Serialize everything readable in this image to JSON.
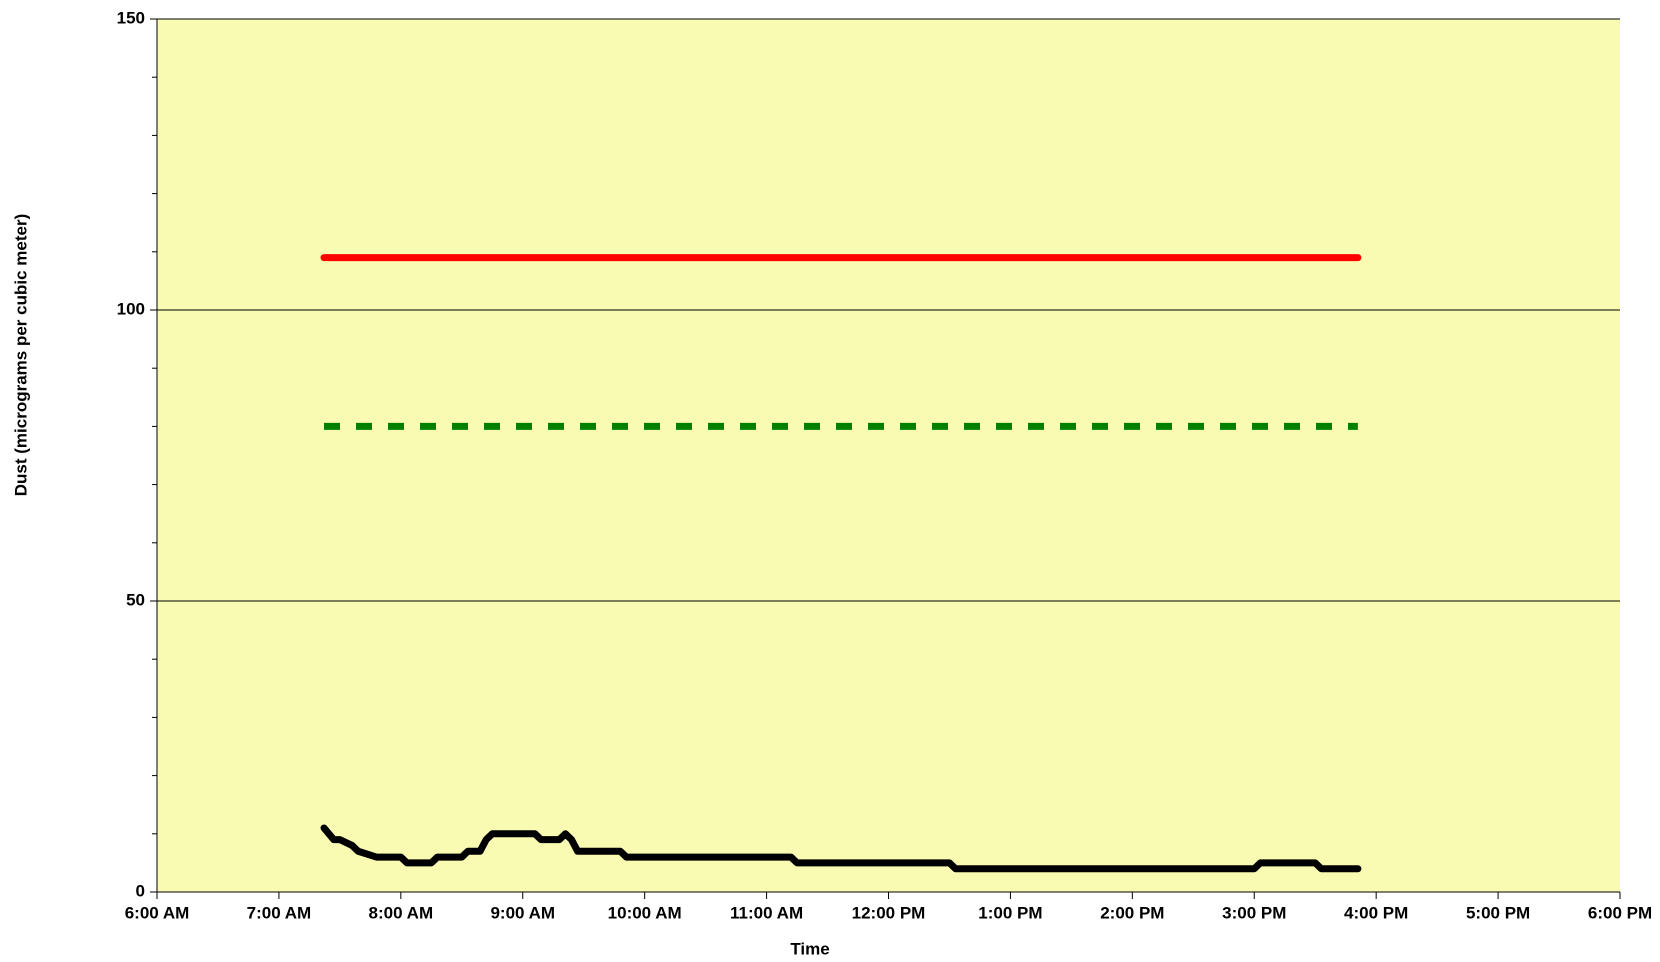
{
  "chart_data": {
    "type": "line",
    "xlabel": "Time",
    "ylabel": "Dust (micrograms per cubic meter)",
    "plot_background": "#f8fbb1",
    "xlim": [
      6,
      18
    ],
    "xticks": [
      {
        "value": 6,
        "label": "6:00 AM"
      },
      {
        "value": 7,
        "label": "7:00 AM"
      },
      {
        "value": 8,
        "label": "8:00 AM"
      },
      {
        "value": 9,
        "label": "9:00 AM"
      },
      {
        "value": 10,
        "label": "10:00 AM"
      },
      {
        "value": 11,
        "label": "11:00 AM"
      },
      {
        "value": 12,
        "label": "12:00 PM"
      },
      {
        "value": 13,
        "label": "1:00 PM"
      },
      {
        "value": 14,
        "label": "2:00 PM"
      },
      {
        "value": 15,
        "label": "3:00 PM"
      },
      {
        "value": 16,
        "label": "4:00 PM"
      },
      {
        "value": 17,
        "label": "5:00 PM"
      },
      {
        "value": 18,
        "label": "6:00 PM"
      }
    ],
    "ylim": [
      0,
      150
    ],
    "yticks": [
      0,
      50,
      100,
      150
    ],
    "y_minor_ticks": [
      10,
      20,
      30,
      40,
      60,
      70,
      80,
      90,
      110,
      120,
      130,
      140
    ],
    "grid": true,
    "series": [
      {
        "color": "#ff0000",
        "linestyle": "solid",
        "x": [
          7.37,
          15.85
        ],
        "values": [
          109,
          109
        ]
      },
      {
        "color": "#008000",
        "linestyle": "dashed",
        "x": [
          7.37,
          15.85
        ],
        "values": [
          80,
          80
        ]
      },
      {
        "color": "#000000",
        "linestyle": "solid",
        "x": [
          7.37,
          7.45,
          7.5,
          7.6,
          7.65,
          7.8,
          8.0,
          8.05,
          8.25,
          8.3,
          8.5,
          8.55,
          8.65,
          8.7,
          8.75,
          9.1,
          9.15,
          9.3,
          9.35,
          9.4,
          9.45,
          9.8,
          9.85,
          10.8,
          10.85,
          11.2,
          11.25,
          12.5,
          12.55,
          14.6,
          14.65,
          15.0,
          15.05,
          15.5,
          15.55,
          15.85
        ],
        "values": [
          11,
          9,
          9,
          8,
          7,
          6,
          6,
          5,
          5,
          6,
          6,
          7,
          7,
          9,
          10,
          10,
          9,
          9,
          10,
          9,
          7,
          7,
          6,
          6,
          6,
          6,
          5,
          5,
          4,
          4,
          4,
          4,
          5,
          5,
          4,
          4
        ]
      }
    ]
  }
}
